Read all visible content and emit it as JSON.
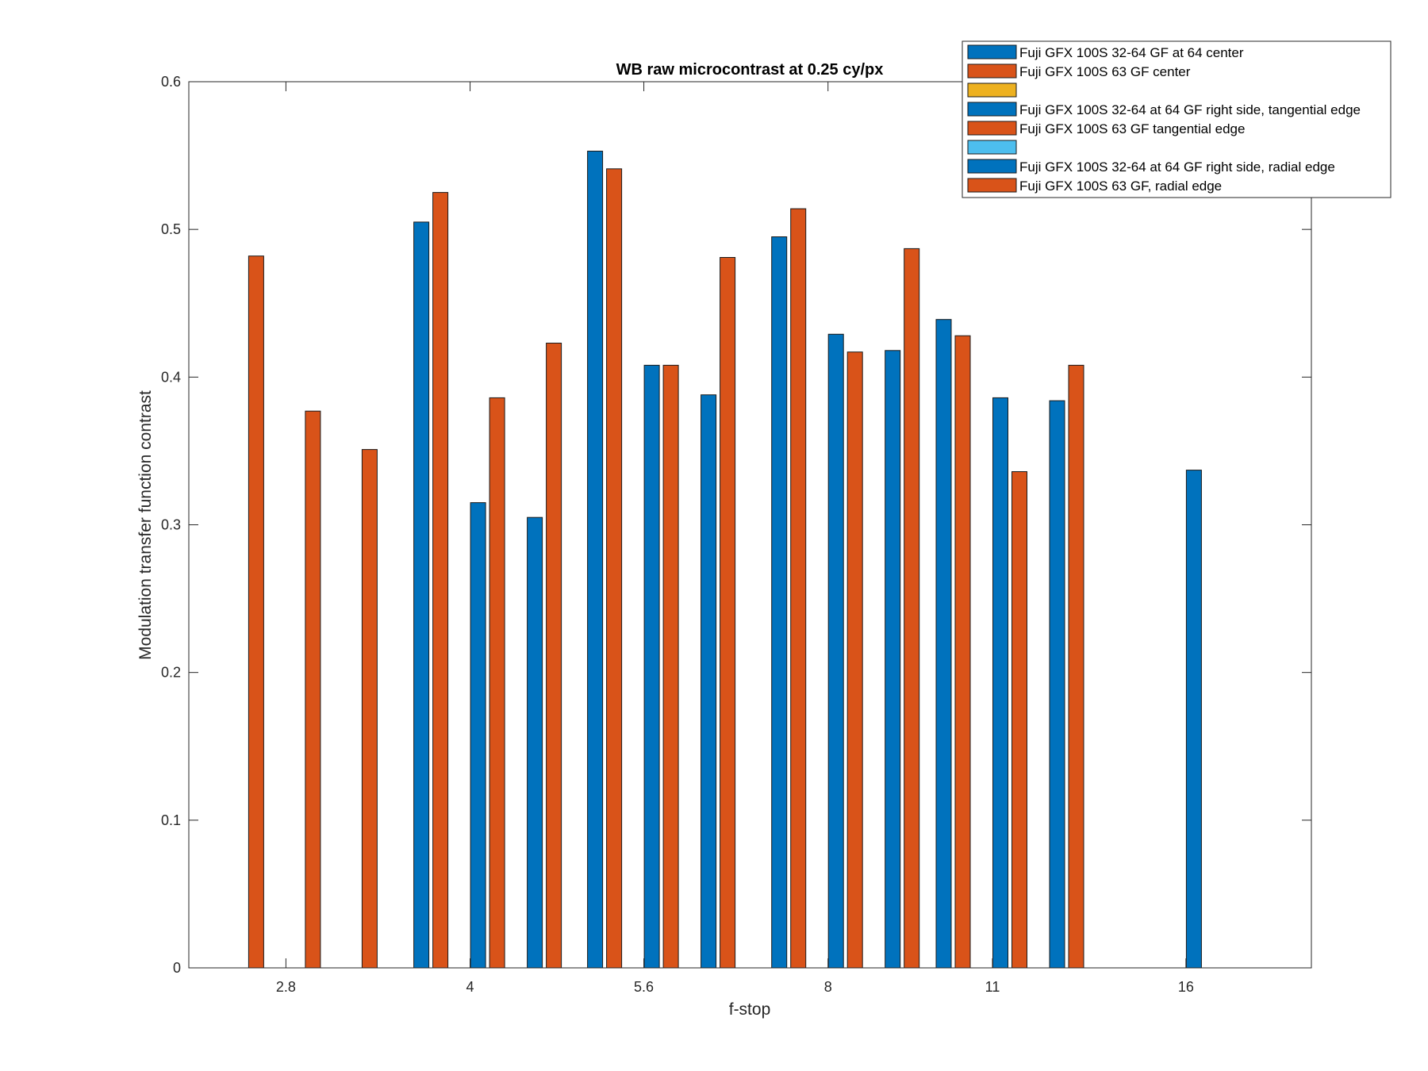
{
  "chart_data": {
    "type": "bar",
    "title": "WB raw  microcontrast at 0.25 cy/px",
    "xlabel": "f-stop",
    "ylabel": "Modulation transfer function contrast",
    "xlim": [
      2.32,
      20.4
    ],
    "ylim": [
      0,
      0.6
    ],
    "x_scale": "log",
    "x_ticks": [
      {
        "value": 2.8,
        "label": "2.8"
      },
      {
        "value": 4,
        "label": "4"
      },
      {
        "value": 5.6,
        "label": "5.6"
      },
      {
        "value": 8,
        "label": "8"
      },
      {
        "value": 11,
        "label": "11"
      },
      {
        "value": 16,
        "label": "16"
      }
    ],
    "y_ticks": [
      {
        "value": 0,
        "label": "0"
      },
      {
        "value": 0.1,
        "label": "0.1"
      },
      {
        "value": 0.2,
        "label": "0.2"
      },
      {
        "value": 0.3,
        "label": "0.3"
      },
      {
        "value": 0.4,
        "label": "0.4"
      },
      {
        "value": 0.5,
        "label": "0.5"
      },
      {
        "value": 0.6,
        "label": "0.6"
      }
    ],
    "grid": false,
    "legend_position": "top-right",
    "x": [
      2.8,
      3.2,
      3.5,
      4,
      4.5,
      5,
      5.6,
      6.3,
      7.1,
      8,
      9,
      10,
      11,
      13,
      14,
      16
    ],
    "series": [
      {
        "name": "Fuji GFX 100S 32-64 GF at 64 center",
        "color": "#0072BD",
        "values": [
          null,
          null,
          null,
          0.505,
          null,
          null,
          0.553,
          null,
          null,
          0.495,
          null,
          null,
          0.439,
          null,
          null,
          null
        ]
      },
      {
        "name": "Fuji GFX 100S 63 GF center",
        "color": "#D95319",
        "values": [
          0.482,
          null,
          null,
          0.525,
          null,
          null,
          0.541,
          null,
          null,
          0.514,
          null,
          null,
          0.428,
          null,
          null,
          null
        ]
      },
      {
        "name": "",
        "color": "#EDB120",
        "values": [
          null,
          null,
          null,
          null,
          null,
          null,
          null,
          null,
          null,
          null,
          null,
          null,
          null,
          null,
          null,
          null
        ]
      },
      {
        "name": "Fuji GFX 100S 32-64 at 64 GF right side, tangential edge",
        "color": "#0072BD",
        "values": [
          null,
          null,
          null,
          0.315,
          null,
          null,
          0.408,
          null,
          null,
          0.429,
          null,
          null,
          0.386,
          null,
          null,
          0.337
        ]
      },
      {
        "name": "Fuji GFX 100S 63 GF tangential edge",
        "color": "#D95319",
        "values": [
          0.377,
          null,
          null,
          0.386,
          null,
          null,
          0.408,
          null,
          null,
          0.417,
          null,
          null,
          0.336,
          null,
          null,
          null
        ]
      },
      {
        "name": "",
        "color": "#4DBEEE",
        "values": [
          null,
          null,
          null,
          null,
          null,
          null,
          null,
          null,
          null,
          null,
          null,
          null,
          null,
          null,
          null,
          null
        ]
      },
      {
        "name": "Fuji GFX 100S 32-64 at 64 GF right side, radial edge",
        "color": "#0072BD",
        "values": [
          null,
          null,
          null,
          0.305,
          null,
          null,
          0.388,
          null,
          null,
          0.418,
          null,
          null,
          0.384,
          null,
          null,
          null
        ]
      },
      {
        "name": "Fuji GFX 100S 63 GF, radial edge",
        "color": "#D95319",
        "values": [
          0.351,
          null,
          null,
          0.423,
          null,
          null,
          0.481,
          null,
          null,
          0.487,
          null,
          null,
          0.408,
          null,
          null,
          null
        ]
      }
    ]
  }
}
